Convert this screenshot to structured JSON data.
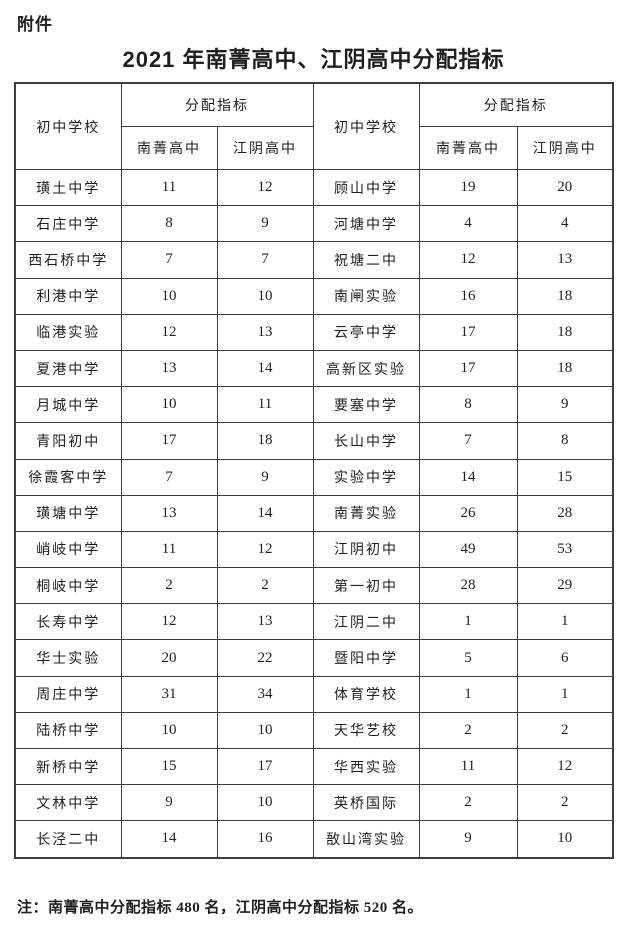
{
  "attachment_label": "附件",
  "title": "2021 年南菁高中、江阴高中分配指标",
  "table": {
    "school_header_left": "初中学校",
    "school_header_right": "初中学校",
    "group_header_left": "分配指标",
    "group_header_right": "分配指标",
    "subcol_nanjing_left": "南菁高中",
    "subcol_jiangyin_left": "江阴高中",
    "subcol_nanjing_right": "南菁高中",
    "subcol_jiangyin_right": "江阴高中",
    "left_rows": [
      {
        "school": "璜土中学",
        "nanjing": 11,
        "jiangyin": 12
      },
      {
        "school": "石庄中学",
        "nanjing": 8,
        "jiangyin": 9
      },
      {
        "school": "西石桥中学",
        "nanjing": 7,
        "jiangyin": 7
      },
      {
        "school": "利港中学",
        "nanjing": 10,
        "jiangyin": 10
      },
      {
        "school": "临港实验",
        "nanjing": 12,
        "jiangyin": 13
      },
      {
        "school": "夏港中学",
        "nanjing": 13,
        "jiangyin": 14
      },
      {
        "school": "月城中学",
        "nanjing": 10,
        "jiangyin": 11
      },
      {
        "school": "青阳初中",
        "nanjing": 17,
        "jiangyin": 18
      },
      {
        "school": "徐霞客中学",
        "nanjing": 7,
        "jiangyin": 9
      },
      {
        "school": "璜塘中学",
        "nanjing": 13,
        "jiangyin": 14
      },
      {
        "school": "峭岐中学",
        "nanjing": 11,
        "jiangyin": 12
      },
      {
        "school": "桐岐中学",
        "nanjing": 2,
        "jiangyin": 2
      },
      {
        "school": "长寿中学",
        "nanjing": 12,
        "jiangyin": 13
      },
      {
        "school": "华士实验",
        "nanjing": 20,
        "jiangyin": 22
      },
      {
        "school": "周庄中学",
        "nanjing": 31,
        "jiangyin": 34
      },
      {
        "school": "陆桥中学",
        "nanjing": 10,
        "jiangyin": 10
      },
      {
        "school": "新桥中学",
        "nanjing": 15,
        "jiangyin": 17
      },
      {
        "school": "文林中学",
        "nanjing": 9,
        "jiangyin": 10
      },
      {
        "school": "长泾二中",
        "nanjing": 14,
        "jiangyin": 16
      }
    ],
    "right_rows": [
      {
        "school": "顾山中学",
        "nanjing": 19,
        "jiangyin": 20
      },
      {
        "school": "河塘中学",
        "nanjing": 4,
        "jiangyin": 4
      },
      {
        "school": "祝塘二中",
        "nanjing": 12,
        "jiangyin": 13
      },
      {
        "school": "南闸实验",
        "nanjing": 16,
        "jiangyin": 18
      },
      {
        "school": "云亭中学",
        "nanjing": 17,
        "jiangyin": 18
      },
      {
        "school": "高新区实验",
        "nanjing": 17,
        "jiangyin": 18
      },
      {
        "school": "要塞中学",
        "nanjing": 8,
        "jiangyin": 9
      },
      {
        "school": "长山中学",
        "nanjing": 7,
        "jiangyin": 8
      },
      {
        "school": "实验中学",
        "nanjing": 14,
        "jiangyin": 15
      },
      {
        "school": "南菁实验",
        "nanjing": 26,
        "jiangyin": 28
      },
      {
        "school": "江阴初中",
        "nanjing": 49,
        "jiangyin": 53
      },
      {
        "school": "第一初中",
        "nanjing": 28,
        "jiangyin": 29
      },
      {
        "school": "江阴二中",
        "nanjing": 1,
        "jiangyin": 1
      },
      {
        "school": "暨阳中学",
        "nanjing": 5,
        "jiangyin": 6
      },
      {
        "school": "体育学校",
        "nanjing": 1,
        "jiangyin": 1
      },
      {
        "school": "天华艺校",
        "nanjing": 2,
        "jiangyin": 2
      },
      {
        "school": "华西实验",
        "nanjing": 11,
        "jiangyin": 12
      },
      {
        "school": "英桥国际",
        "nanjing": 2,
        "jiangyin": 2
      },
      {
        "school": "敔山湾实验",
        "nanjing": 9,
        "jiangyin": 10
      }
    ]
  },
  "note": "注：南菁高中分配指标 480 名，江阴高中分配指标 520 名。"
}
